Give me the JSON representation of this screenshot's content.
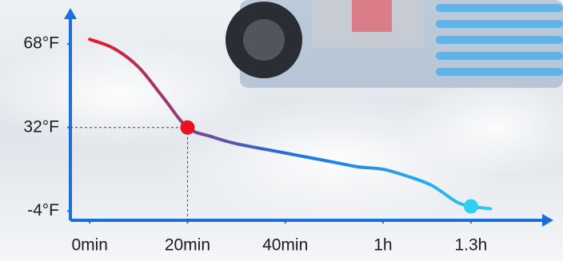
{
  "chart_data": {
    "type": "line",
    "x": [
      0,
      5,
      10,
      15,
      20,
      25,
      30,
      40,
      50,
      55,
      60,
      65,
      70,
      75,
      78,
      82
    ],
    "series": [
      {
        "values": [
          70,
          66,
          58,
          45,
          32,
          28,
          25,
          21,
          17,
          15,
          14,
          11,
          7,
          0,
          -2,
          -3
        ]
      }
    ],
    "gradient": [
      "#e8182a",
      "#1f6fe0",
      "#30c8f0"
    ],
    "highlight_points": [
      4,
      14
    ],
    "highlight_colors": [
      "#e81222",
      "#2fd0f0"
    ],
    "axis_color": "#1a6fd8",
    "xlim": [
      -2,
      88
    ],
    "xticks": [
      {
        "value": 0,
        "label": "0min"
      },
      {
        "value": 20,
        "label": "20min"
      },
      {
        "value": 40,
        "label": "40min"
      },
      {
        "value": 60,
        "label": "1h"
      },
      {
        "value": 78,
        "label": "1.3h"
      }
    ],
    "ylim": [
      -8,
      78
    ],
    "yticks": [
      {
        "value": 68,
        "label": "68°F"
      },
      {
        "value": 32,
        "label": "32°F"
      },
      {
        "value": -4,
        "label": "-4°F"
      }
    ]
  }
}
